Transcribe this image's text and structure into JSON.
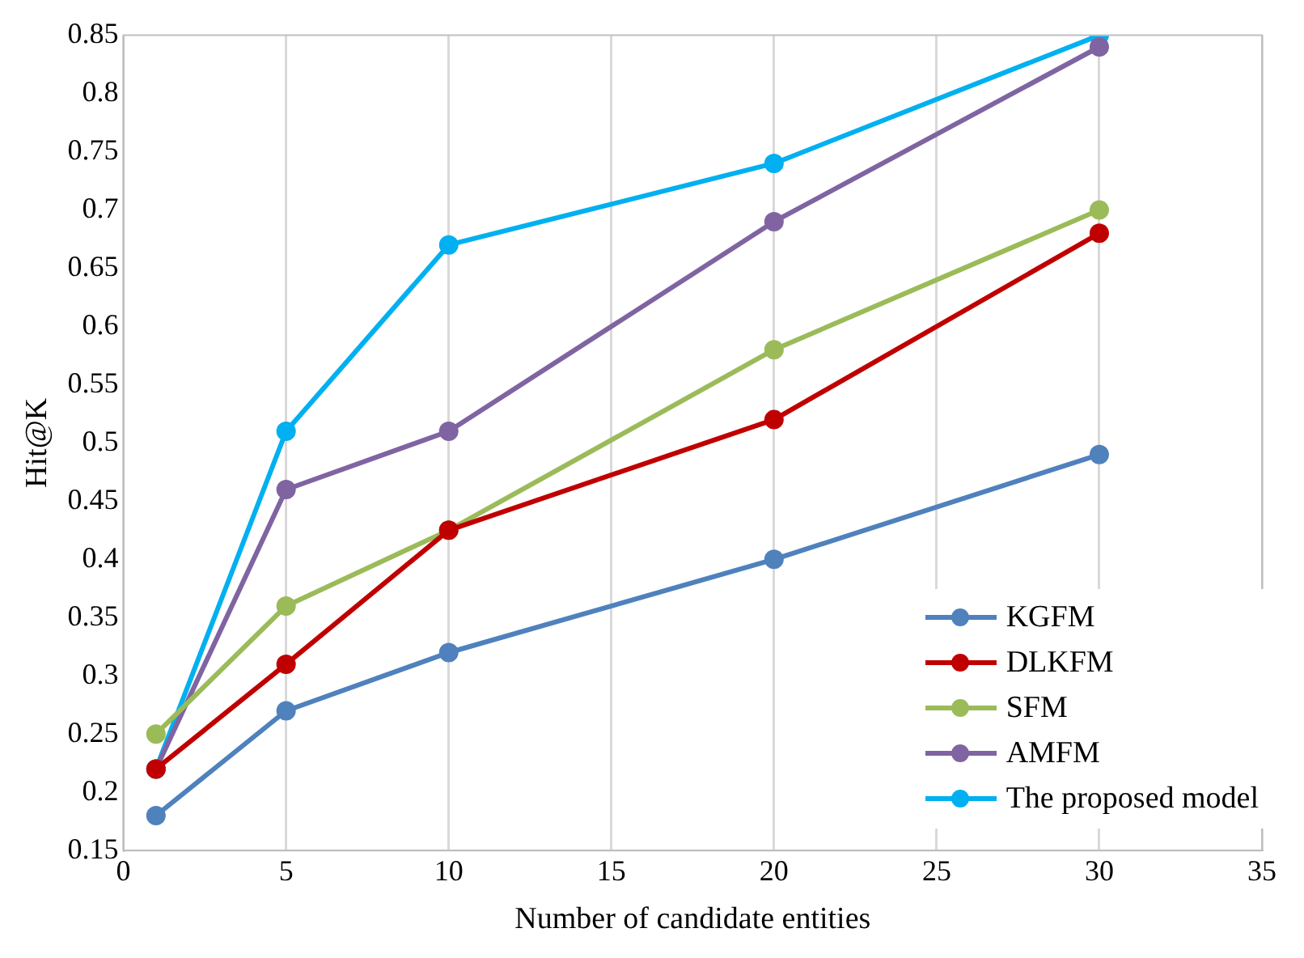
{
  "chart_data": {
    "type": "line",
    "xlabel": "Number of candidate entities",
    "ylabel": "Hit@K",
    "x": [
      1,
      5,
      10,
      20,
      30
    ],
    "series": [
      {
        "name": "KGFM",
        "color": "#4f81bd",
        "values": [
          0.18,
          0.27,
          0.32,
          0.4,
          0.49
        ]
      },
      {
        "name": "DLKFM",
        "color": "#c00000",
        "values": [
          0.22,
          0.31,
          0.425,
          0.52,
          0.68
        ]
      },
      {
        "name": "SFM",
        "color": "#9bbb59",
        "values": [
          0.25,
          0.36,
          0.425,
          0.58,
          0.7
        ]
      },
      {
        "name": "AMFM",
        "color": "#8064a2",
        "values": [
          0.22,
          0.46,
          0.51,
          0.69,
          0.84
        ]
      },
      {
        "name": "The proposed model",
        "color": "#00b0f0",
        "values": [
          0.22,
          0.51,
          0.67,
          0.74,
          0.85
        ]
      }
    ],
    "xlim": [
      0,
      35
    ],
    "xticks": [
      0,
      5,
      10,
      15,
      20,
      25,
      30,
      35
    ],
    "ylim": [
      0.15,
      0.85
    ],
    "yticks": [
      0.15,
      0.2,
      0.25,
      0.3,
      0.35,
      0.4,
      0.45,
      0.5,
      0.55,
      0.6,
      0.65,
      0.7,
      0.75,
      0.8,
      0.85
    ],
    "grid": "x",
    "legend": "bottom right",
    "marker": "circle",
    "line_style": "solid"
  }
}
